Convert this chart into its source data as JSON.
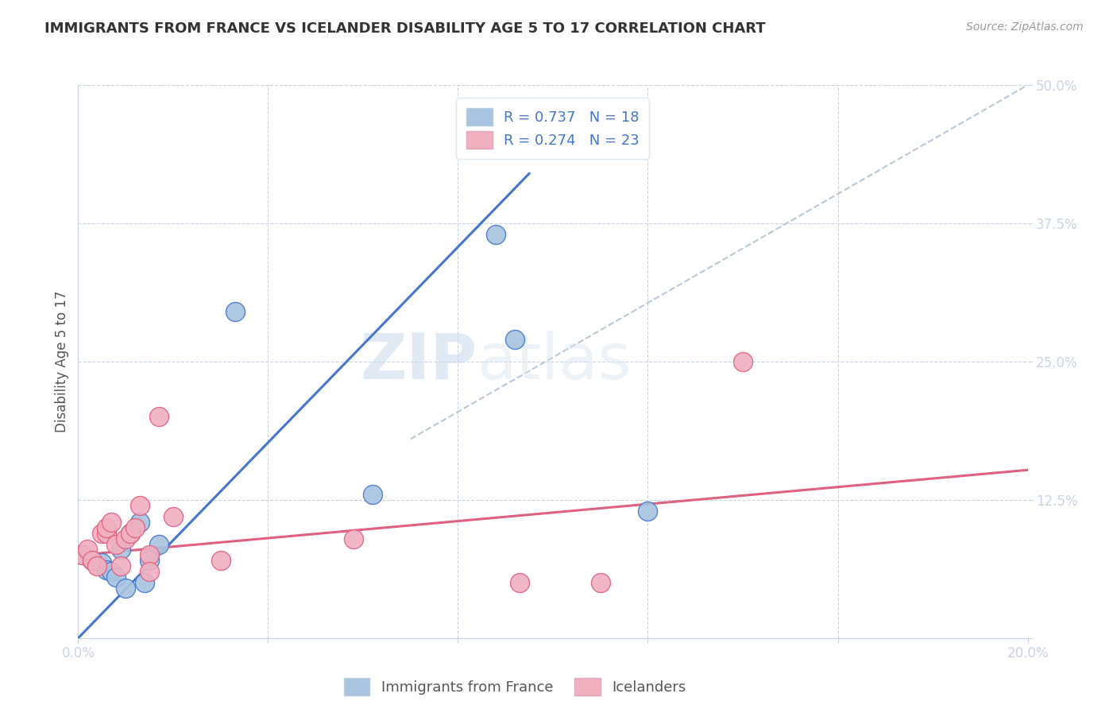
{
  "title": "IMMIGRANTS FROM FRANCE VS ICELANDER DISABILITY AGE 5 TO 17 CORRELATION CHART",
  "source": "Source: ZipAtlas.com",
  "ylabel": "Disability Age 5 to 17",
  "x_min": 0.0,
  "x_max": 0.2,
  "y_min": 0.0,
  "y_max": 0.5,
  "x_ticks": [
    0.0,
    0.04,
    0.08,
    0.12,
    0.16,
    0.2
  ],
  "y_ticks": [
    0.0,
    0.125,
    0.25,
    0.375,
    0.5
  ],
  "blue_R": 0.737,
  "blue_N": 18,
  "pink_R": 0.274,
  "pink_N": 23,
  "blue_color": "#a8c4e0",
  "blue_line_color": "#4477cc",
  "pink_color": "#f0b0c0",
  "pink_line_color": "#e06080",
  "diag_line_color": "#b8c8d8",
  "watermark_zip": "ZIP",
  "watermark_atlas": "atlas",
  "legend_label_blue": "Immigrants from France",
  "legend_label_pink": "Icelanders",
  "blue_scatter_x": [
    0.001,
    0.003,
    0.005,
    0.006,
    0.007,
    0.008,
    0.009,
    0.01,
    0.011,
    0.013,
    0.014,
    0.015,
    0.017,
    0.033,
    0.062,
    0.088,
    0.092,
    0.12
  ],
  "blue_scatter_y": [
    0.075,
    0.07,
    0.068,
    0.062,
    0.06,
    0.055,
    0.08,
    0.045,
    0.095,
    0.105,
    0.05,
    0.07,
    0.085,
    0.295,
    0.13,
    0.365,
    0.27,
    0.115
  ],
  "pink_scatter_x": [
    0.001,
    0.002,
    0.003,
    0.004,
    0.005,
    0.006,
    0.006,
    0.007,
    0.008,
    0.009,
    0.01,
    0.011,
    0.012,
    0.013,
    0.015,
    0.015,
    0.017,
    0.02,
    0.03,
    0.058,
    0.093,
    0.11,
    0.14
  ],
  "pink_scatter_y": [
    0.075,
    0.08,
    0.07,
    0.065,
    0.095,
    0.095,
    0.1,
    0.105,
    0.085,
    0.065,
    0.09,
    0.095,
    0.1,
    0.12,
    0.075,
    0.06,
    0.2,
    0.11,
    0.07,
    0.09,
    0.05,
    0.05,
    0.25
  ],
  "blue_line_x": [
    0.0,
    0.095
  ],
  "blue_line_y": [
    0.0,
    0.42
  ],
  "pink_line_x": [
    0.0,
    0.2
  ],
  "pink_line_y": [
    0.075,
    0.152
  ],
  "diag_line_x": [
    0.07,
    0.2
  ],
  "diag_line_y": [
    0.18,
    0.5
  ],
  "title_fontsize": 13,
  "tick_fontsize": 12,
  "legend_fontsize": 13,
  "source_fontsize": 10
}
